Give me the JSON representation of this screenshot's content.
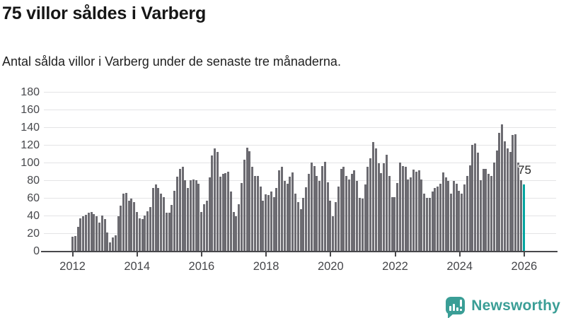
{
  "header": {
    "title": "75 villor såldes i Varberg",
    "subtitle": "Antal sålda villor i Varberg under de senaste tre månaderna."
  },
  "chart_data": {
    "type": "bar",
    "title": "75 villor såldes i Varberg",
    "subtitle": "Antal sålda villor i Varberg under de senaste tre månaderna.",
    "x_start": "2012-01",
    "x_end": "2026-01",
    "x_unit": "month (rolling 3-month total)",
    "x_tick_years": [
      2012,
      2014,
      2016,
      2018,
      2020,
      2022,
      2024,
      2026
    ],
    "y_ticks": [
      0,
      20,
      40,
      60,
      80,
      100,
      120,
      140,
      160,
      180
    ],
    "ylim": [
      0,
      180
    ],
    "grid": true,
    "bar_color": "#6c6b71",
    "gridline_color": "#e4e4e5",
    "values": [
      16,
      17,
      27,
      37,
      39,
      41,
      43,
      44,
      42,
      39,
      32,
      40,
      36,
      21,
      10,
      15,
      18,
      39,
      51,
      65,
      66,
      57,
      59,
      55,
      44,
      37,
      36,
      40,
      45,
      50,
      71,
      75,
      71,
      65,
      61,
      43,
      43,
      52,
      68,
      84,
      93,
      95,
      80,
      71,
      80,
      81,
      80,
      76,
      44,
      53,
      57,
      83,
      108,
      116,
      112,
      84,
      87,
      88,
      90,
      67,
      44,
      39,
      53,
      77,
      103,
      117,
      113,
      95,
      85,
      85,
      73,
      57,
      64,
      63,
      67,
      61,
      71,
      91,
      95,
      79,
      76,
      84,
      89,
      65,
      55,
      47,
      60,
      72,
      87,
      100,
      96,
      85,
      79,
      96,
      101,
      78,
      57,
      39,
      55,
      73,
      93,
      95,
      85,
      81,
      87,
      91,
      79,
      60,
      59,
      75,
      95,
      105,
      123,
      116,
      99,
      88,
      99,
      109,
      85,
      61,
      61,
      77,
      100,
      96,
      95,
      81,
      83,
      92,
      90,
      91,
      81,
      65,
      60,
      60,
      67,
      71,
      73,
      76,
      89,
      83,
      79,
      65,
      79,
      76,
      68,
      65,
      75,
      85,
      97,
      120,
      122,
      111,
      80,
      93,
      93,
      87,
      85,
      100,
      114,
      134,
      143,
      124,
      116,
      112,
      131,
      132,
      100,
      80,
      75
    ],
    "highlight": {
      "index": 168,
      "value": 75,
      "label": "75",
      "color": "#00a49f"
    }
  },
  "footer": {
    "brand": "Newsworthy",
    "brand_color": "#3a9e96",
    "icon": "newsworthy-chart-bubble-icon"
  }
}
